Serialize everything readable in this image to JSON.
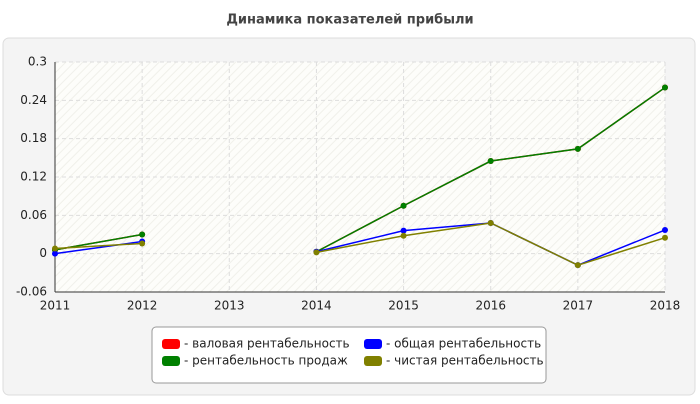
{
  "chart_data": {
    "type": "line",
    "title": "Динамика показателей прибыли",
    "categories": [
      "2011",
      "2012",
      "2013",
      "2014",
      "2015",
      "2016",
      "2017",
      "2018"
    ],
    "ylim": [
      -0.06,
      0.3
    ],
    "yticks": [
      -0.06,
      0,
      0.06,
      0.12,
      0.18,
      0.24,
      0.3
    ],
    "grid": true,
    "series": [
      {
        "name": "- валовая рентабельность",
        "color": "#ff0000",
        "values": [
          0.006,
          0.03,
          null,
          0.003,
          0.075,
          0.145,
          0.164,
          0.26
        ]
      },
      {
        "name": "- рентабельность продаж",
        "color": "#008000",
        "values": [
          0.006,
          0.03,
          null,
          0.003,
          0.075,
          0.145,
          0.164,
          0.26
        ]
      },
      {
        "name": "- общая рентабельность",
        "color": "#0000ff",
        "values": [
          0.0,
          0.019,
          null,
          0.003,
          0.036,
          0.048,
          -0.018,
          0.037
        ]
      },
      {
        "name": "- чистая рентабельность",
        "color": "#808000",
        "values": [
          0.008,
          0.016,
          null,
          0.002,
          0.028,
          0.048,
          -0.018,
          0.025
        ]
      }
    ]
  }
}
